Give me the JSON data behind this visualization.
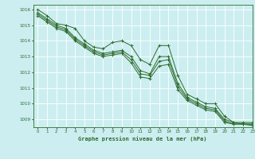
{
  "title": "Graphe pression niveau de la mer (hPa)",
  "background_color": "#cceef0",
  "grid_color": "#ffffff",
  "line_color": "#2d6b2d",
  "xlim": [
    -0.5,
    23
  ],
  "ylim": [
    1008.5,
    1016.3
  ],
  "yticks": [
    1009,
    1010,
    1011,
    1012,
    1013,
    1014,
    1015,
    1016
  ],
  "xticks": [
    0,
    1,
    2,
    3,
    4,
    5,
    6,
    7,
    8,
    9,
    10,
    11,
    12,
    13,
    14,
    15,
    16,
    17,
    18,
    19,
    20,
    21,
    22,
    23
  ],
  "series": [
    [
      1016.0,
      1015.6,
      1015.1,
      1015.0,
      1014.8,
      1014.0,
      1013.6,
      1013.5,
      1013.9,
      1014.0,
      1013.7,
      1012.8,
      1012.5,
      1013.7,
      1013.7,
      1011.8,
      1010.6,
      1010.3,
      1010.0,
      1010.0,
      1009.2,
      1008.8,
      1008.8,
      1008.8
    ],
    [
      1015.8,
      1015.4,
      1015.0,
      1014.8,
      1014.2,
      1013.8,
      1013.4,
      1013.2,
      1013.3,
      1013.4,
      1013.0,
      1012.1,
      1011.9,
      1013.0,
      1013.0,
      1011.3,
      1010.4,
      1010.1,
      1009.8,
      1009.7,
      1009.0,
      1008.8,
      1008.7,
      1008.7
    ],
    [
      1015.7,
      1015.3,
      1014.9,
      1014.7,
      1014.1,
      1013.7,
      1013.3,
      1013.1,
      1013.2,
      1013.3,
      1012.8,
      1011.9,
      1011.8,
      1012.7,
      1012.8,
      1011.1,
      1010.3,
      1010.0,
      1009.7,
      1009.6,
      1008.9,
      1008.7,
      1008.7,
      1008.7
    ],
    [
      1015.6,
      1015.2,
      1014.8,
      1014.6,
      1014.0,
      1013.6,
      1013.2,
      1013.0,
      1013.1,
      1013.2,
      1012.6,
      1011.7,
      1011.6,
      1012.4,
      1012.5,
      1010.9,
      1010.2,
      1009.9,
      1009.6,
      1009.5,
      1008.8,
      1008.7,
      1008.7,
      1008.6
    ]
  ]
}
